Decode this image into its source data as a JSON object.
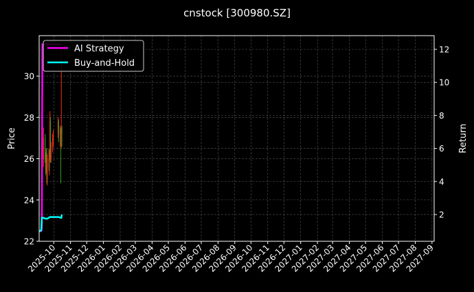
{
  "chart_data": {
    "type": "candlestick+line",
    "title": "cnstock [300980.SZ]",
    "ylabel_left": "Price",
    "ylabel_right": "Return",
    "xlim": [
      "2025-09-04",
      "2027-09-05"
    ],
    "ylim_left": [
      22,
      31.96
    ],
    "ylim_right": [
      0.38,
      12.83
    ],
    "grid": true,
    "legend_position": "top-left",
    "x_ticks": [
      "2025-10",
      "2025-11",
      "2025-12",
      "2026-01",
      "2026-02",
      "2026-03",
      "2026-04",
      "2026-05",
      "2026-06",
      "2026-07",
      "2026-08",
      "2026-09",
      "2026-10",
      "2026-11",
      "2026-12",
      "2027-01",
      "2027-02",
      "2027-03",
      "2027-04",
      "2027-05",
      "2027-06",
      "2027-07",
      "2027-08",
      "2027-09"
    ],
    "y_ticks_left": [
      22,
      24,
      26,
      28,
      30
    ],
    "y_ticks_right": [
      2,
      4,
      6,
      8,
      10,
      12
    ],
    "candles": [
      {
        "date": "2025-09-12",
        "open": 26.0,
        "high": 27.5,
        "low": 25.6,
        "close": 27.0
      },
      {
        "date": "2025-09-15",
        "open": 27.0,
        "high": 27.2,
        "low": 25.8,
        "close": 26.0
      },
      {
        "date": "2025-09-16",
        "open": 26.0,
        "high": 26.3,
        "low": 25.2,
        "close": 25.5
      },
      {
        "date": "2025-09-17",
        "open": 25.5,
        "high": 26.5,
        "low": 25.3,
        "close": 26.3
      },
      {
        "date": "2025-09-18",
        "open": 26.3,
        "high": 26.5,
        "low": 24.8,
        "close": 25.0
      },
      {
        "date": "2025-09-19",
        "open": 25.0,
        "high": 26.2,
        "low": 24.7,
        "close": 26.0
      },
      {
        "date": "2025-09-22",
        "open": 26.0,
        "high": 26.5,
        "low": 25.4,
        "close": 25.6
      },
      {
        "date": "2025-09-23",
        "open": 25.6,
        "high": 26.4,
        "low": 25.2,
        "close": 26.2
      },
      {
        "date": "2025-09-24",
        "open": 26.2,
        "high": 28.3,
        "low": 25.9,
        "close": 27.8
      },
      {
        "date": "2025-09-25",
        "open": 27.8,
        "high": 28.0,
        "low": 25.8,
        "close": 26.0
      },
      {
        "date": "2025-09-26",
        "open": 26.0,
        "high": 26.8,
        "low": 25.8,
        "close": 26.5
      },
      {
        "date": "2025-09-29",
        "open": 26.5,
        "high": 27.2,
        "low": 26.3,
        "close": 27.0
      },
      {
        "date": "2025-09-30",
        "open": 27.0,
        "high": 27.4,
        "low": 26.6,
        "close": 27.2
      },
      {
        "date": "2025-10-09",
        "open": 27.2,
        "high": 28.0,
        "low": 27.0,
        "close": 27.8
      },
      {
        "date": "2025-10-10",
        "open": 27.8,
        "high": 27.9,
        "low": 26.8,
        "close": 27.2
      },
      {
        "date": "2025-10-13",
        "open": 27.2,
        "high": 27.6,
        "low": 26.6,
        "close": 27.4
      },
      {
        "date": "2025-10-14",
        "open": 27.0,
        "high": 27.5,
        "low": 24.8,
        "close": 26.8
      },
      {
        "date": "2025-10-15",
        "open": 26.8,
        "high": 31.3,
        "low": 26.5,
        "close": 27.5
      },
      {
        "date": "2025-10-16",
        "open": 27.5,
        "high": 27.6,
        "low": 26.6,
        "close": 27.2
      }
    ],
    "up_color": "#ff2a1a",
    "down_color": "#2f9a1e",
    "series": [
      {
        "name": "AI Strategy",
        "color": "#ff00ff",
        "x": [
          "2025-09-04",
          "2025-09-05",
          "2025-09-08",
          "2025-09-09",
          "2025-09-10",
          "2025-09-12",
          "2025-10-16"
        ],
        "values": [
          1.0,
          1.0,
          1.0,
          1.2,
          12.3,
          12.3,
          12.3
        ]
      },
      {
        "name": "Buy-and-Hold",
        "color": "#00ffff",
        "x": [
          "2025-09-04",
          "2025-09-05",
          "2025-09-08",
          "2025-09-09",
          "2025-09-12",
          "2025-09-16",
          "2025-09-19",
          "2025-09-24",
          "2025-09-30",
          "2025-10-10",
          "2025-10-14",
          "2025-10-15",
          "2025-10-16"
        ],
        "values": [
          1.0,
          1.0,
          1.05,
          1.8,
          1.8,
          1.75,
          1.75,
          1.85,
          1.85,
          1.85,
          1.8,
          1.8,
          2.0
        ]
      }
    ]
  }
}
